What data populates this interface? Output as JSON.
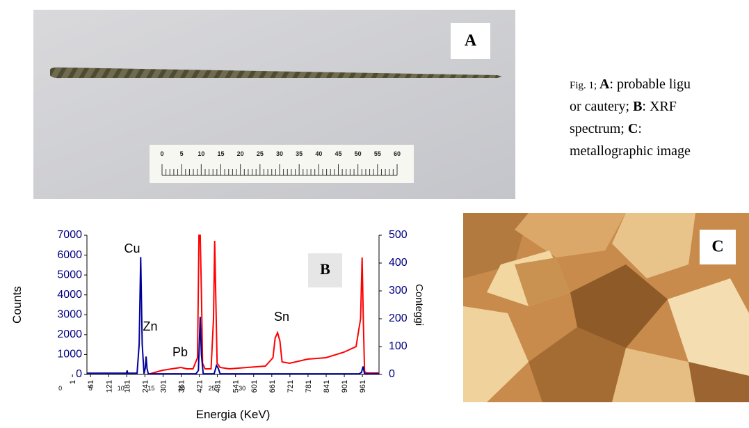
{
  "panel_a": {
    "label": "A",
    "ruler_labels": [
      0,
      5,
      10,
      15,
      20,
      25,
      30,
      35,
      40,
      45,
      50,
      55,
      60
    ]
  },
  "caption": {
    "lines": [
      [
        {
          "text": "Fig. 1; ",
          "bold": false
        },
        {
          "text": "A",
          "bold": true
        },
        {
          "text": ": probable ligu",
          "bold": false
        }
      ],
      [
        {
          "text": "or cautery; ",
          "bold": false
        },
        {
          "text": "B",
          "bold": true
        },
        {
          "text": ": XRF",
          "bold": false
        }
      ],
      [
        {
          "text": "spectrum; ",
          "bold": false
        },
        {
          "text": "C",
          "bold": true
        },
        {
          "text": ":",
          "bold": false
        }
      ],
      [
        {
          "text": "metallographic image",
          "bold": false
        }
      ]
    ]
  },
  "chart_data": {
    "type": "line",
    "label": "B",
    "x_label": "Energia (KeV)",
    "y_label": "Counts",
    "y2_label": "Conteggi",
    "xlim": [
      49,
      1016
    ],
    "xticks": [
      1,
      61,
      121,
      181,
      241,
      301,
      361,
      421,
      481,
      541,
      601,
      661,
      721,
      781,
      841,
      901,
      961
    ],
    "x2lim": [
      4.4,
      52.6
    ],
    "x2ticks": [
      0,
      5,
      10,
      15,
      20,
      25,
      30
    ],
    "ylim": [
      0,
      7000
    ],
    "yticks": [
      0,
      1000,
      2000,
      3000,
      4000,
      5000,
      6000,
      7000
    ],
    "y2lim": [
      0,
      500
    ],
    "y2ticks": [
      0,
      100,
      200,
      300,
      400,
      500
    ],
    "series": [
      {
        "color": "#000099",
        "x": [
          49,
          180,
          182,
          184,
          215,
          222,
          227,
          232,
          238,
          242,
          245,
          248,
          252,
          410,
          418,
          424,
          428,
          434,
          470,
          478,
          484,
          490,
          950,
          958,
          963,
          968,
          1016
        ],
        "values": [
          60,
          60,
          200,
          60,
          60,
          1500,
          5900,
          1500,
          40,
          300,
          900,
          300,
          30,
          30,
          200,
          2900,
          1000,
          30,
          30,
          450,
          300,
          30,
          30,
          100,
          400,
          30,
          30
        ]
      },
      {
        "color": "#ff0000",
        "axis": "y2",
        "x": [
          250,
          300,
          330,
          360,
          380,
          400,
          415,
          420,
          424,
          428,
          432,
          440,
          460,
          468,
          472,
          476,
          480,
          490,
          520,
          580,
          640,
          665,
          672,
          680,
          688,
          695,
          720,
          780,
          840,
          900,
          940,
          955,
          960,
          964,
          968,
          975,
          1016
        ],
        "values": [
          0,
          15,
          20,
          25,
          20,
          20,
          60,
          500,
          500,
          300,
          40,
          20,
          20,
          200,
          480,
          250,
          40,
          25,
          20,
          25,
          30,
          60,
          130,
          150,
          120,
          45,
          40,
          55,
          60,
          80,
          100,
          200,
          420,
          200,
          10,
          5,
          5
        ]
      }
    ],
    "annotations": [
      "Cu",
      "Zn",
      "Pb",
      "Sn"
    ]
  },
  "panel_c": {
    "label": "C"
  }
}
